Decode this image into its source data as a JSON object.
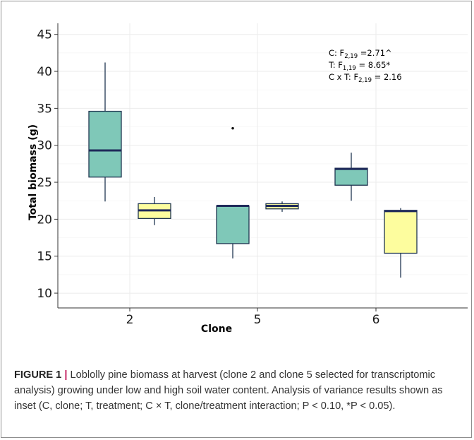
{
  "figure": {
    "label": "FIGURE 1",
    "separator": "|",
    "caption_text": "Loblolly pine biomass at harvest (clone 2 and clone 5 selected for transcriptomic analysis) growing under low and high soil water content. Analysis of variance results shown as inset (C, clone; T, treatment; C × T, clone/treatment interaction; P < 0.10, *P < 0.05)."
  },
  "chart_data": {
    "type": "boxplot",
    "title": "",
    "xlabel": "Clone",
    "ylabel": "Total biomass (g)",
    "ylim": [
      8,
      46.5
    ],
    "yticks": [
      10,
      15,
      20,
      25,
      30,
      35,
      40,
      45
    ],
    "categories": [
      "2",
      "5",
      "6"
    ],
    "grid": true,
    "colors": {
      "left_box": "#7fc8b8",
      "right_box": "#fdfd9e",
      "median": "#1f2a5a",
      "whisker": "#1f3550"
    },
    "boxes": [
      {
        "category": "2",
        "position": "left",
        "whisker_low": 22.4,
        "q1": 25.7,
        "median": 29.3,
        "q3": 34.6,
        "whisker_high": 41.2,
        "outliers": []
      },
      {
        "category": "2",
        "position": "right",
        "whisker_low": 19.2,
        "q1": 20.1,
        "median": 21.2,
        "q3": 22.1,
        "whisker_high": 23.0,
        "outliers": []
      },
      {
        "category": "5",
        "position": "left",
        "whisker_low": 14.7,
        "q1": 16.7,
        "median": 21.8,
        "q3": 21.8,
        "whisker_high": 21.8,
        "outliers": [
          32.3
        ]
      },
      {
        "category": "5",
        "position": "right",
        "whisker_low": 21.0,
        "q1": 21.4,
        "median": 21.8,
        "q3": 22.1,
        "whisker_high": 22.4,
        "outliers": []
      },
      {
        "category": "6",
        "position": "left",
        "whisker_low": 22.5,
        "q1": 24.6,
        "median": 26.8,
        "q3": 26.9,
        "whisker_high": 29.0,
        "outliers": []
      },
      {
        "category": "6",
        "position": "right",
        "whisker_low": 12.1,
        "q1": 15.4,
        "median": 21.1,
        "q3": 21.2,
        "whisker_high": 21.5,
        "outliers": []
      }
    ],
    "annotations": [
      {
        "prefix": "C: F",
        "sub": "2,19",
        "suffix": " =2.71^"
      },
      {
        "prefix": "T: F",
        "sub": "1,19",
        "suffix": " = 8.65*"
      },
      {
        "prefix": "C x T: F",
        "sub": "2,19",
        "suffix": " = 2.16"
      }
    ]
  }
}
